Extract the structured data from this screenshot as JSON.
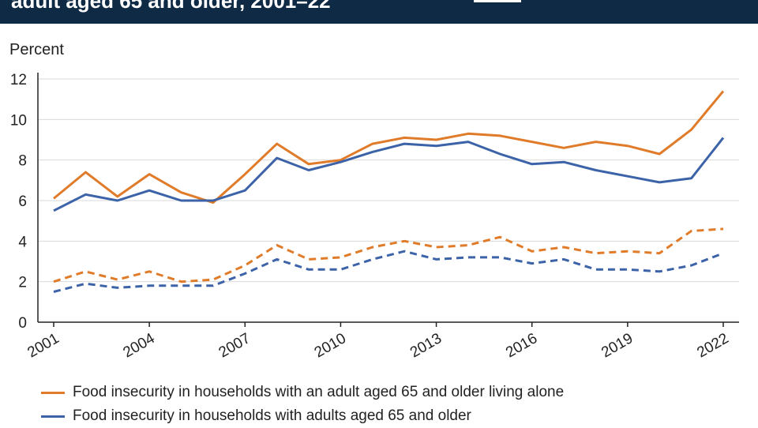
{
  "header": {
    "title": "adult aged 65 and older, 2001–22"
  },
  "chart_data": {
    "type": "line",
    "title": "adult aged 65 and older, 2001–22",
    "ylabel": "Percent",
    "xlabel": "",
    "ylim": [
      0,
      12
    ],
    "yticks": [
      0,
      2,
      4,
      6,
      8,
      10,
      12
    ],
    "x": [
      2001,
      2002,
      2003,
      2004,
      2005,
      2006,
      2007,
      2008,
      2009,
      2010,
      2011,
      2012,
      2013,
      2014,
      2015,
      2016,
      2017,
      2018,
      2019,
      2020,
      2021,
      2022
    ],
    "xtick_labels": [
      "2001",
      "2004",
      "2007",
      "2010",
      "2013",
      "2016",
      "2019",
      "2022"
    ],
    "grid": "horizontal",
    "legend_position": "bottom",
    "series": [
      {
        "name": "Food insecurity in households with an adult aged 65 and older living alone",
        "color": "#e07b2a",
        "style": "solid",
        "values": [
          6.1,
          7.4,
          6.2,
          7.3,
          6.4,
          5.9,
          7.3,
          8.8,
          7.8,
          8.0,
          8.8,
          9.1,
          9.0,
          9.3,
          9.2,
          8.9,
          8.6,
          8.9,
          8.7,
          8.3,
          9.5,
          11.4
        ]
      },
      {
        "name": "Food insecurity in households with adults aged 65 and older",
        "color": "#3c63a8",
        "style": "solid",
        "values": [
          5.5,
          6.3,
          6.0,
          6.5,
          6.0,
          6.0,
          6.5,
          8.1,
          7.5,
          7.9,
          8.4,
          8.8,
          8.7,
          8.9,
          8.3,
          7.8,
          7.9,
          7.5,
          7.2,
          6.9,
          7.1,
          9.1
        ]
      },
      {
        "name": "",
        "color": "#e07b2a",
        "style": "dashed",
        "values": [
          2.0,
          2.5,
          2.1,
          2.5,
          2.0,
          2.1,
          2.8,
          3.8,
          3.1,
          3.2,
          3.7,
          4.0,
          3.7,
          3.8,
          4.2,
          3.5,
          3.7,
          3.4,
          3.5,
          3.4,
          4.5,
          4.6
        ]
      },
      {
        "name": "",
        "color": "#3c63a8",
        "style": "dashed",
        "values": [
          1.5,
          1.9,
          1.7,
          1.8,
          1.8,
          1.8,
          2.4,
          3.1,
          2.6,
          2.6,
          3.1,
          3.5,
          3.1,
          3.2,
          3.2,
          2.9,
          3.1,
          2.6,
          2.6,
          2.5,
          2.8,
          3.4
        ]
      }
    ]
  }
}
